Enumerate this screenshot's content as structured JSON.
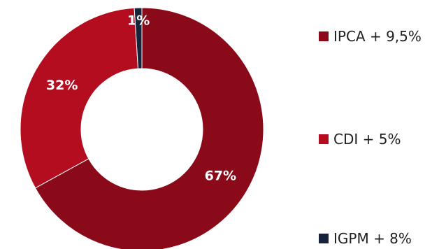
{
  "chart_data": {
    "type": "pie",
    "variant": "donut",
    "categories": [
      "IPCA + 9,5%",
      "CDI + 5%",
      "IGPM + 8%"
    ],
    "values": [
      67,
      32,
      1
    ],
    "data_labels": [
      "67%",
      "32%",
      "1%"
    ],
    "colors": [
      "#8b0a1a",
      "#b50d20",
      "#17223b"
    ],
    "legend_position": "right",
    "title": ""
  }
}
